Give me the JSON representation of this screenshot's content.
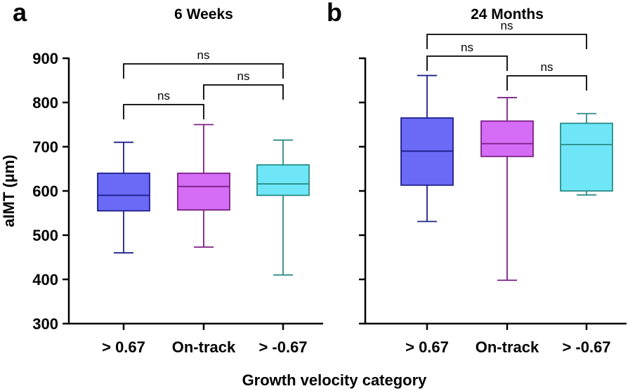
{
  "figure": {
    "shared_ylabel": "aIMT (µm)",
    "shared_xlabel": "Growth velocity category"
  },
  "colors": {
    "cat1_fill": "#6a6af7",
    "cat1_edge": "#1f1f8a",
    "cat2_fill": "#d56cf5",
    "cat2_edge": "#7b1f86",
    "cat3_fill": "#6ee6f7",
    "cat3_edge": "#2b8c86",
    "axis": "#000000"
  },
  "chart_data": [
    {
      "panel_label": "a",
      "type": "box",
      "title": "6 Weeks",
      "categories": [
        "> 0.67",
        "On-track",
        "> -0.67"
      ],
      "ylim": [
        300,
        900
      ],
      "yticks": [
        300,
        400,
        500,
        600,
        700,
        800,
        900
      ],
      "ylabel": "aIMT (µm)",
      "boxes": [
        {
          "min": 460,
          "q1": 555,
          "median": 590,
          "q3": 640,
          "max": 710
        },
        {
          "min": 473,
          "q1": 557,
          "median": 610,
          "q3": 640,
          "max": 750
        },
        {
          "min": 410,
          "q1": 590,
          "median": 616,
          "q3": 659,
          "max": 715
        }
      ],
      "significance": [
        {
          "from": 0,
          "to": 1,
          "label": "ns",
          "level": 1
        },
        {
          "from": 1,
          "to": 2,
          "label": "ns",
          "level": 2
        },
        {
          "from": 0,
          "to": 2,
          "label": "ns",
          "level": 3
        }
      ]
    },
    {
      "panel_label": "b",
      "type": "box",
      "title": "24 Months",
      "categories": [
        "> 0.67",
        "On-track",
        "> -0.67"
      ],
      "ylim": [
        300,
        900
      ],
      "yticks": [
        300,
        400,
        500,
        600,
        700,
        800,
        900
      ],
      "ylabel": "",
      "boxes": [
        {
          "min": 531,
          "q1": 613,
          "median": 690,
          "q3": 765,
          "max": 861
        },
        {
          "min": 398,
          "q1": 678,
          "median": 707,
          "q3": 758,
          "max": 811
        },
        {
          "min": 591,
          "q1": 600,
          "median": 705,
          "q3": 753,
          "max": 775
        }
      ],
      "significance": [
        {
          "from": 0,
          "to": 1,
          "label": "ns",
          "level": 1
        },
        {
          "from": 1,
          "to": 2,
          "label": "ns",
          "level": 2
        },
        {
          "from": 0,
          "to": 2,
          "label": "ns",
          "level": 3
        }
      ]
    }
  ]
}
